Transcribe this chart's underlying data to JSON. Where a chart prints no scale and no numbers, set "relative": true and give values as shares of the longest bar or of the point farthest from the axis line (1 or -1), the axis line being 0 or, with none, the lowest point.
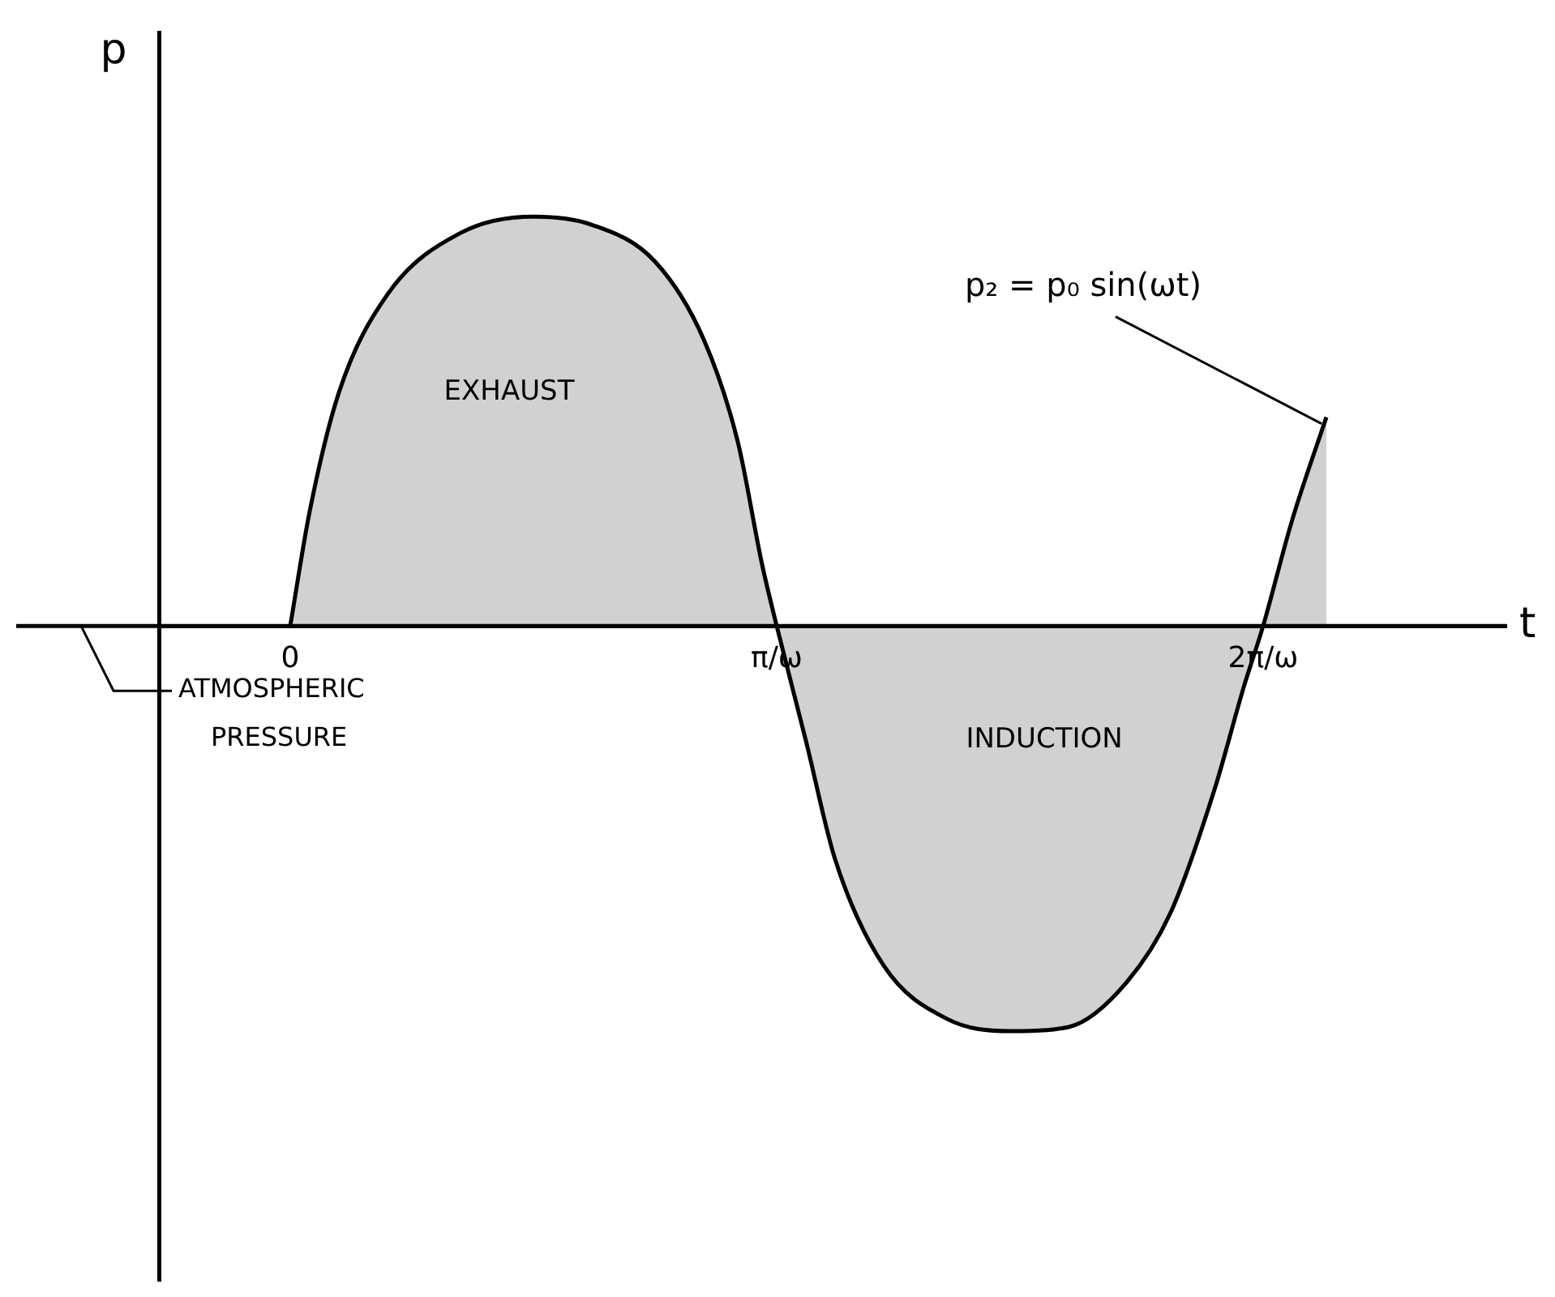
{
  "chart_data": {
    "type": "area",
    "relative": true,
    "xlabel": "t",
    "ylabel": "p",
    "x": [
      0,
      0.04,
      0.1,
      0.2,
      0.35,
      0.5,
      0.62,
      0.75,
      0.85,
      0.92,
      0.97,
      1.0,
      1.06,
      1.12,
      1.22,
      1.35,
      1.48,
      1.6,
      1.72,
      1.81,
      1.9,
      1.96,
      2.0,
      2.06,
      2.13
    ],
    "series": [
      {
        "color": "#000000",
        "values": [
          0,
          0.28,
          0.57,
          0.81,
          0.96,
          1.0,
          0.98,
          0.89,
          0.7,
          0.45,
          0.15,
          0,
          -0.28,
          -0.57,
          -0.83,
          -0.96,
          -0.99,
          -0.98,
          -0.87,
          -0.7,
          -0.4,
          -0.15,
          0,
          0.26,
          0.51
        ]
      }
    ],
    "xlim": [
      -0.27,
      2.5
    ],
    "xticks": [
      {
        "value": 0,
        "label": "0"
      },
      {
        "value": 1,
        "label": "π/ω"
      },
      {
        "value": 2,
        "label": "2π/ω"
      }
    ],
    "grid": false,
    "legend": false,
    "marker": "none",
    "line_style": "solid",
    "ref_lines": [
      {
        "axis": "y",
        "value": 0,
        "label": "ATMOSPHERIC PRESSURE"
      }
    ],
    "annotations": [
      "EXHAUST",
      "INDUCTION",
      "p₂ = p₀ sin(ωt)"
    ]
  }
}
